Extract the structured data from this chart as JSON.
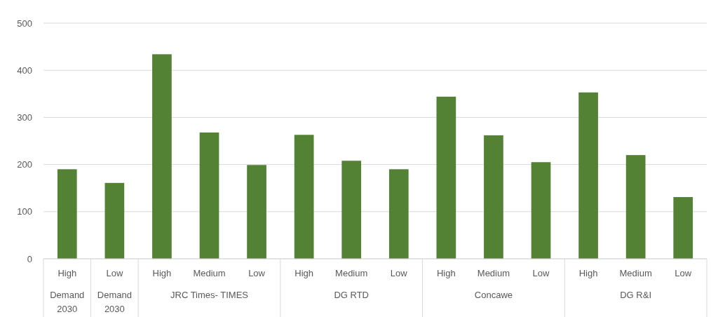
{
  "chart_data": {
    "type": "bar",
    "categories": [
      "High",
      "Low",
      "High",
      "Medium",
      "Low",
      "High",
      "Medium",
      "Low",
      "High",
      "Medium",
      "Low",
      "High",
      "Medium",
      "Low"
    ],
    "values": [
      190,
      161,
      434,
      268,
      199,
      263,
      208,
      190,
      344,
      262,
      205,
      353,
      220,
      131
    ],
    "color": "#548235",
    "ylim": [
      0,
      500
    ],
    "yticks": [
      0,
      100,
      200,
      300,
      400,
      500
    ],
    "grid": "y",
    "annotations": [
      "Demand 2030",
      "Demand 2030",
      "JRC Times- TIMES",
      "DG RTD",
      "Concawe",
      "DG R&I"
    ]
  }
}
